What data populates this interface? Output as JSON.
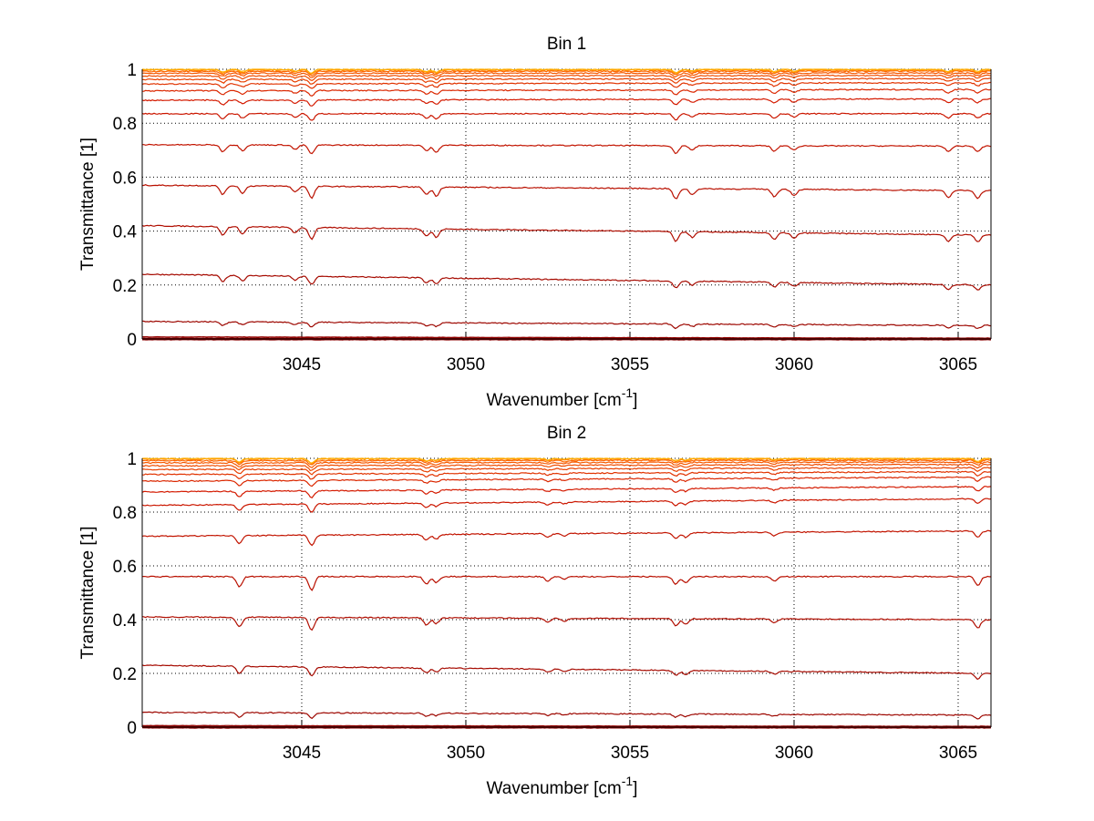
{
  "chart_data": [
    {
      "type": "line",
      "title": "Bin 1",
      "xlabel": "Wavenumber [cm",
      "xlabel_sup": "-1",
      "xlabel_end": "]",
      "ylabel": "Transmittance [1]",
      "xlim": [
        3040.14,
        3066
      ],
      "ylim": [
        0,
        1
      ],
      "xticks": [
        "3045",
        "3050",
        "3055",
        "3060",
        "3065"
      ],
      "yticks": [
        "0",
        "0.2",
        "0.4",
        "0.6",
        "0.8",
        "1"
      ],
      "grid": true,
      "absorption_lines_cm-1": [
        3042.6,
        3043.2,
        3044.8,
        3045.3,
        3048.8,
        3049.1,
        3056.4,
        3056.9,
        3059.4,
        3060.0,
        3064.7,
        3065.6
      ],
      "absorption_relative_depth": [
        0.06,
        0.05,
        0.04,
        0.08,
        0.05,
        0.06,
        0.07,
        0.04,
        0.05,
        0.04,
        0.05,
        0.05
      ],
      "series_baselines": [
        {
          "start": 0.0,
          "end": 0.0
        },
        {
          "start": 0.008,
          "end": 0.003
        },
        {
          "start": 0.065,
          "end": 0.05
        },
        {
          "start": 0.24,
          "end": 0.2
        },
        {
          "start": 0.42,
          "end": 0.385
        },
        {
          "start": 0.57,
          "end": 0.55
        },
        {
          "start": 0.72,
          "end": 0.715
        },
        {
          "start": 0.835,
          "end": 0.835
        },
        {
          "start": 0.885,
          "end": 0.89
        },
        {
          "start": 0.92,
          "end": 0.925
        },
        {
          "start": 0.945,
          "end": 0.95
        },
        {
          "start": 0.962,
          "end": 0.965
        },
        {
          "start": 0.975,
          "end": 0.977
        },
        {
          "start": 0.985,
          "end": 0.986
        },
        {
          "start": 0.992,
          "end": 0.993
        },
        {
          "start": 0.997,
          "end": 0.997
        },
        {
          "start": 1.0,
          "end": 1.0
        }
      ]
    },
    {
      "type": "line",
      "title": "Bin 2",
      "xlabel": "Wavenumber [cm",
      "xlabel_sup": "-1",
      "xlabel_end": "]",
      "ylabel": "Transmittance [1]",
      "xlim": [
        3040.14,
        3066
      ],
      "ylim": [
        0,
        1
      ],
      "xticks": [
        "3045",
        "3050",
        "3055",
        "3060",
        "3065"
      ],
      "yticks": [
        "0",
        "0.2",
        "0.4",
        "0.6",
        "0.8",
        "1"
      ],
      "grid": true,
      "absorption_lines_cm-1": [
        3043.1,
        3045.3,
        3048.8,
        3049.1,
        3052.5,
        3053.0,
        3056.4,
        3056.7,
        3059.4,
        3065.6
      ],
      "absorption_relative_depth": [
        0.07,
        0.09,
        0.05,
        0.04,
        0.03,
        0.02,
        0.05,
        0.04,
        0.03,
        0.06
      ],
      "series_baselines": [
        {
          "start": 0.0,
          "end": 0.0
        },
        {
          "start": 0.006,
          "end": 0.003
        },
        {
          "start": 0.055,
          "end": 0.045
        },
        {
          "start": 0.23,
          "end": 0.2
        },
        {
          "start": 0.41,
          "end": 0.4
        },
        {
          "start": 0.56,
          "end": 0.56
        },
        {
          "start": 0.71,
          "end": 0.73
        },
        {
          "start": 0.825,
          "end": 0.85
        },
        {
          "start": 0.875,
          "end": 0.895
        },
        {
          "start": 0.915,
          "end": 0.93
        },
        {
          "start": 0.94,
          "end": 0.95
        },
        {
          "start": 0.958,
          "end": 0.965
        },
        {
          "start": 0.972,
          "end": 0.977
        },
        {
          "start": 0.983,
          "end": 0.986
        },
        {
          "start": 0.991,
          "end": 0.993
        },
        {
          "start": 0.997,
          "end": 0.997
        },
        {
          "start": 1.0,
          "end": 1.0
        }
      ]
    }
  ],
  "colors": {
    "low": "#8b0000",
    "mid": "#d41a00",
    "high": "#ff6a00",
    "top": "#ffb000"
  }
}
